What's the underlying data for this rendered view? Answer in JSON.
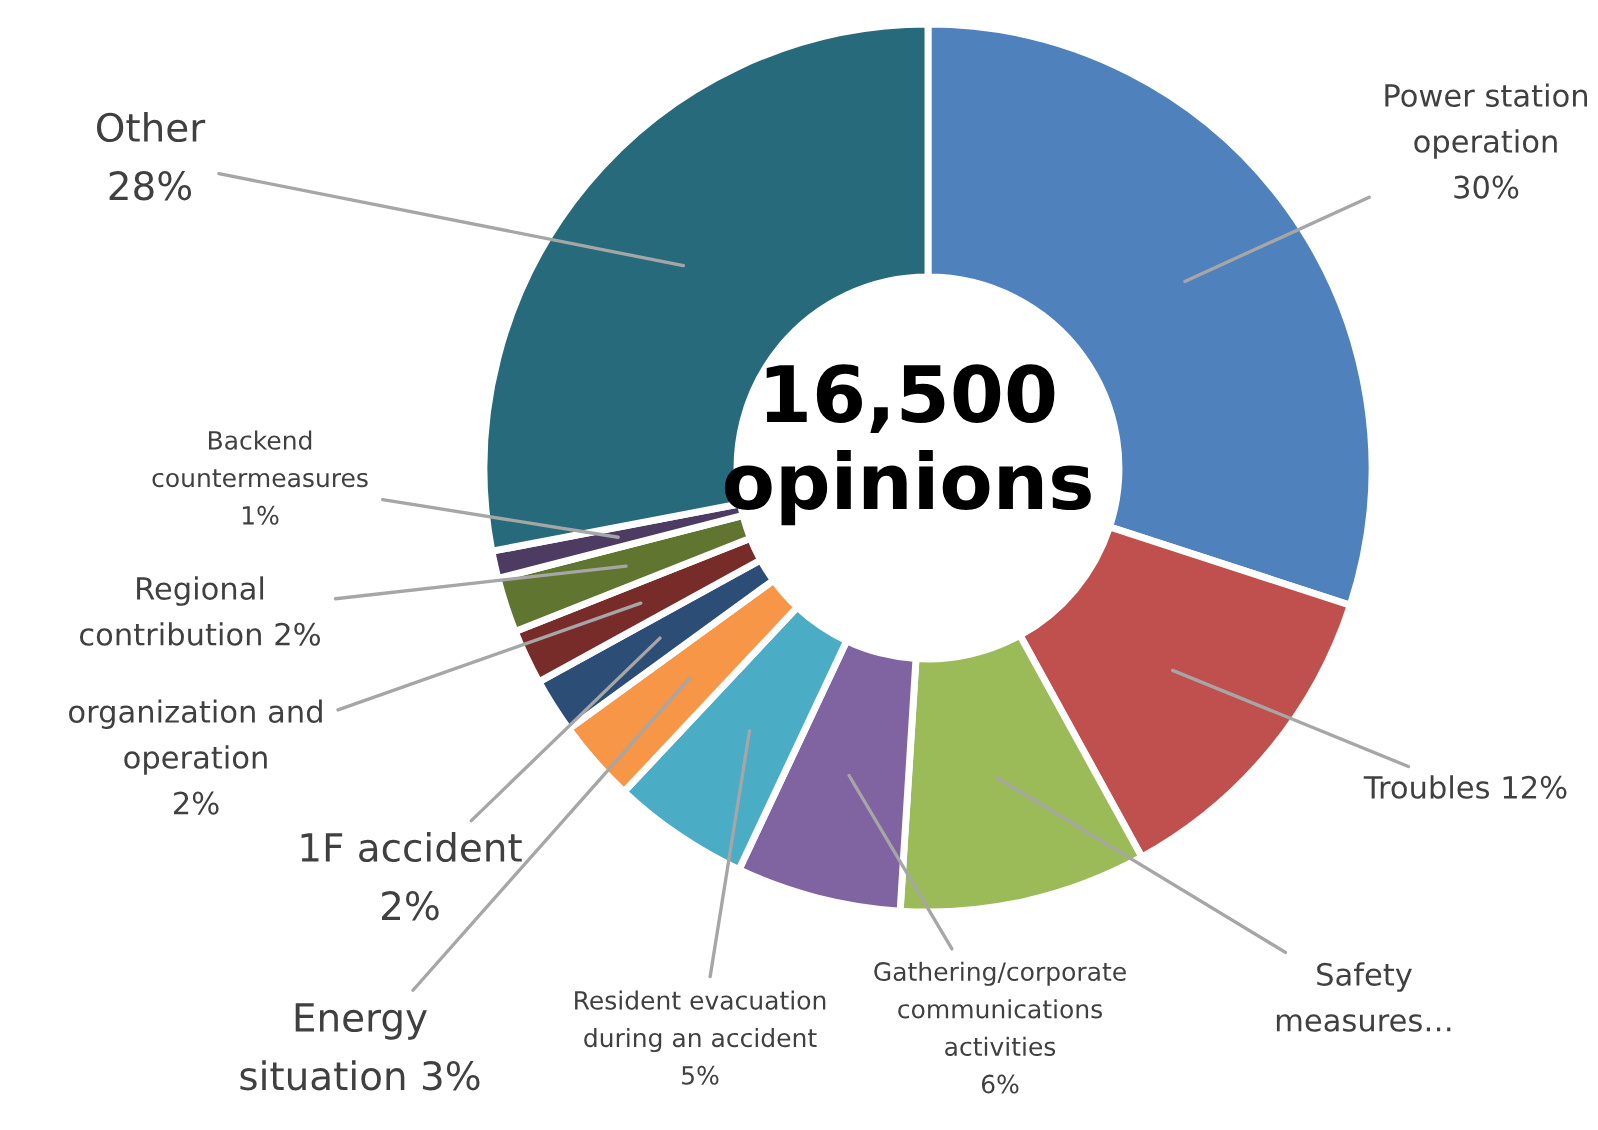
{
  "chart_data": {
    "type": "donut",
    "categories": [
      "Power station operation",
      "Troubles",
      "Safety measures…",
      "Gathering/corporate communications activities",
      "Resident evacuation during an accident",
      "Energy situation",
      "1F accident",
      "organization and operation",
      "Regional contribution",
      "Backend countermeasures",
      "Other"
    ],
    "values": [
      30,
      12,
      9,
      6,
      5,
      3,
      2,
      2,
      2,
      1,
      28
    ],
    "value_labels": [
      "30%",
      "12%",
      null,
      "6%",
      "5%",
      "3%",
      "2%",
      "2%",
      "2%",
      "1%",
      "28%"
    ],
    "colors": [
      "#4f81bd",
      "#c0504d",
      "#9bbb59",
      "#8064a2",
      "#4bacc6",
      "#f79646",
      "#2c4d75",
      "#772c2a",
      "#5f7530",
      "#4d3b62",
      "#276a7c"
    ],
    "annotations": [
      "16,500\nopinions"
    ],
    "legend": false
  }
}
